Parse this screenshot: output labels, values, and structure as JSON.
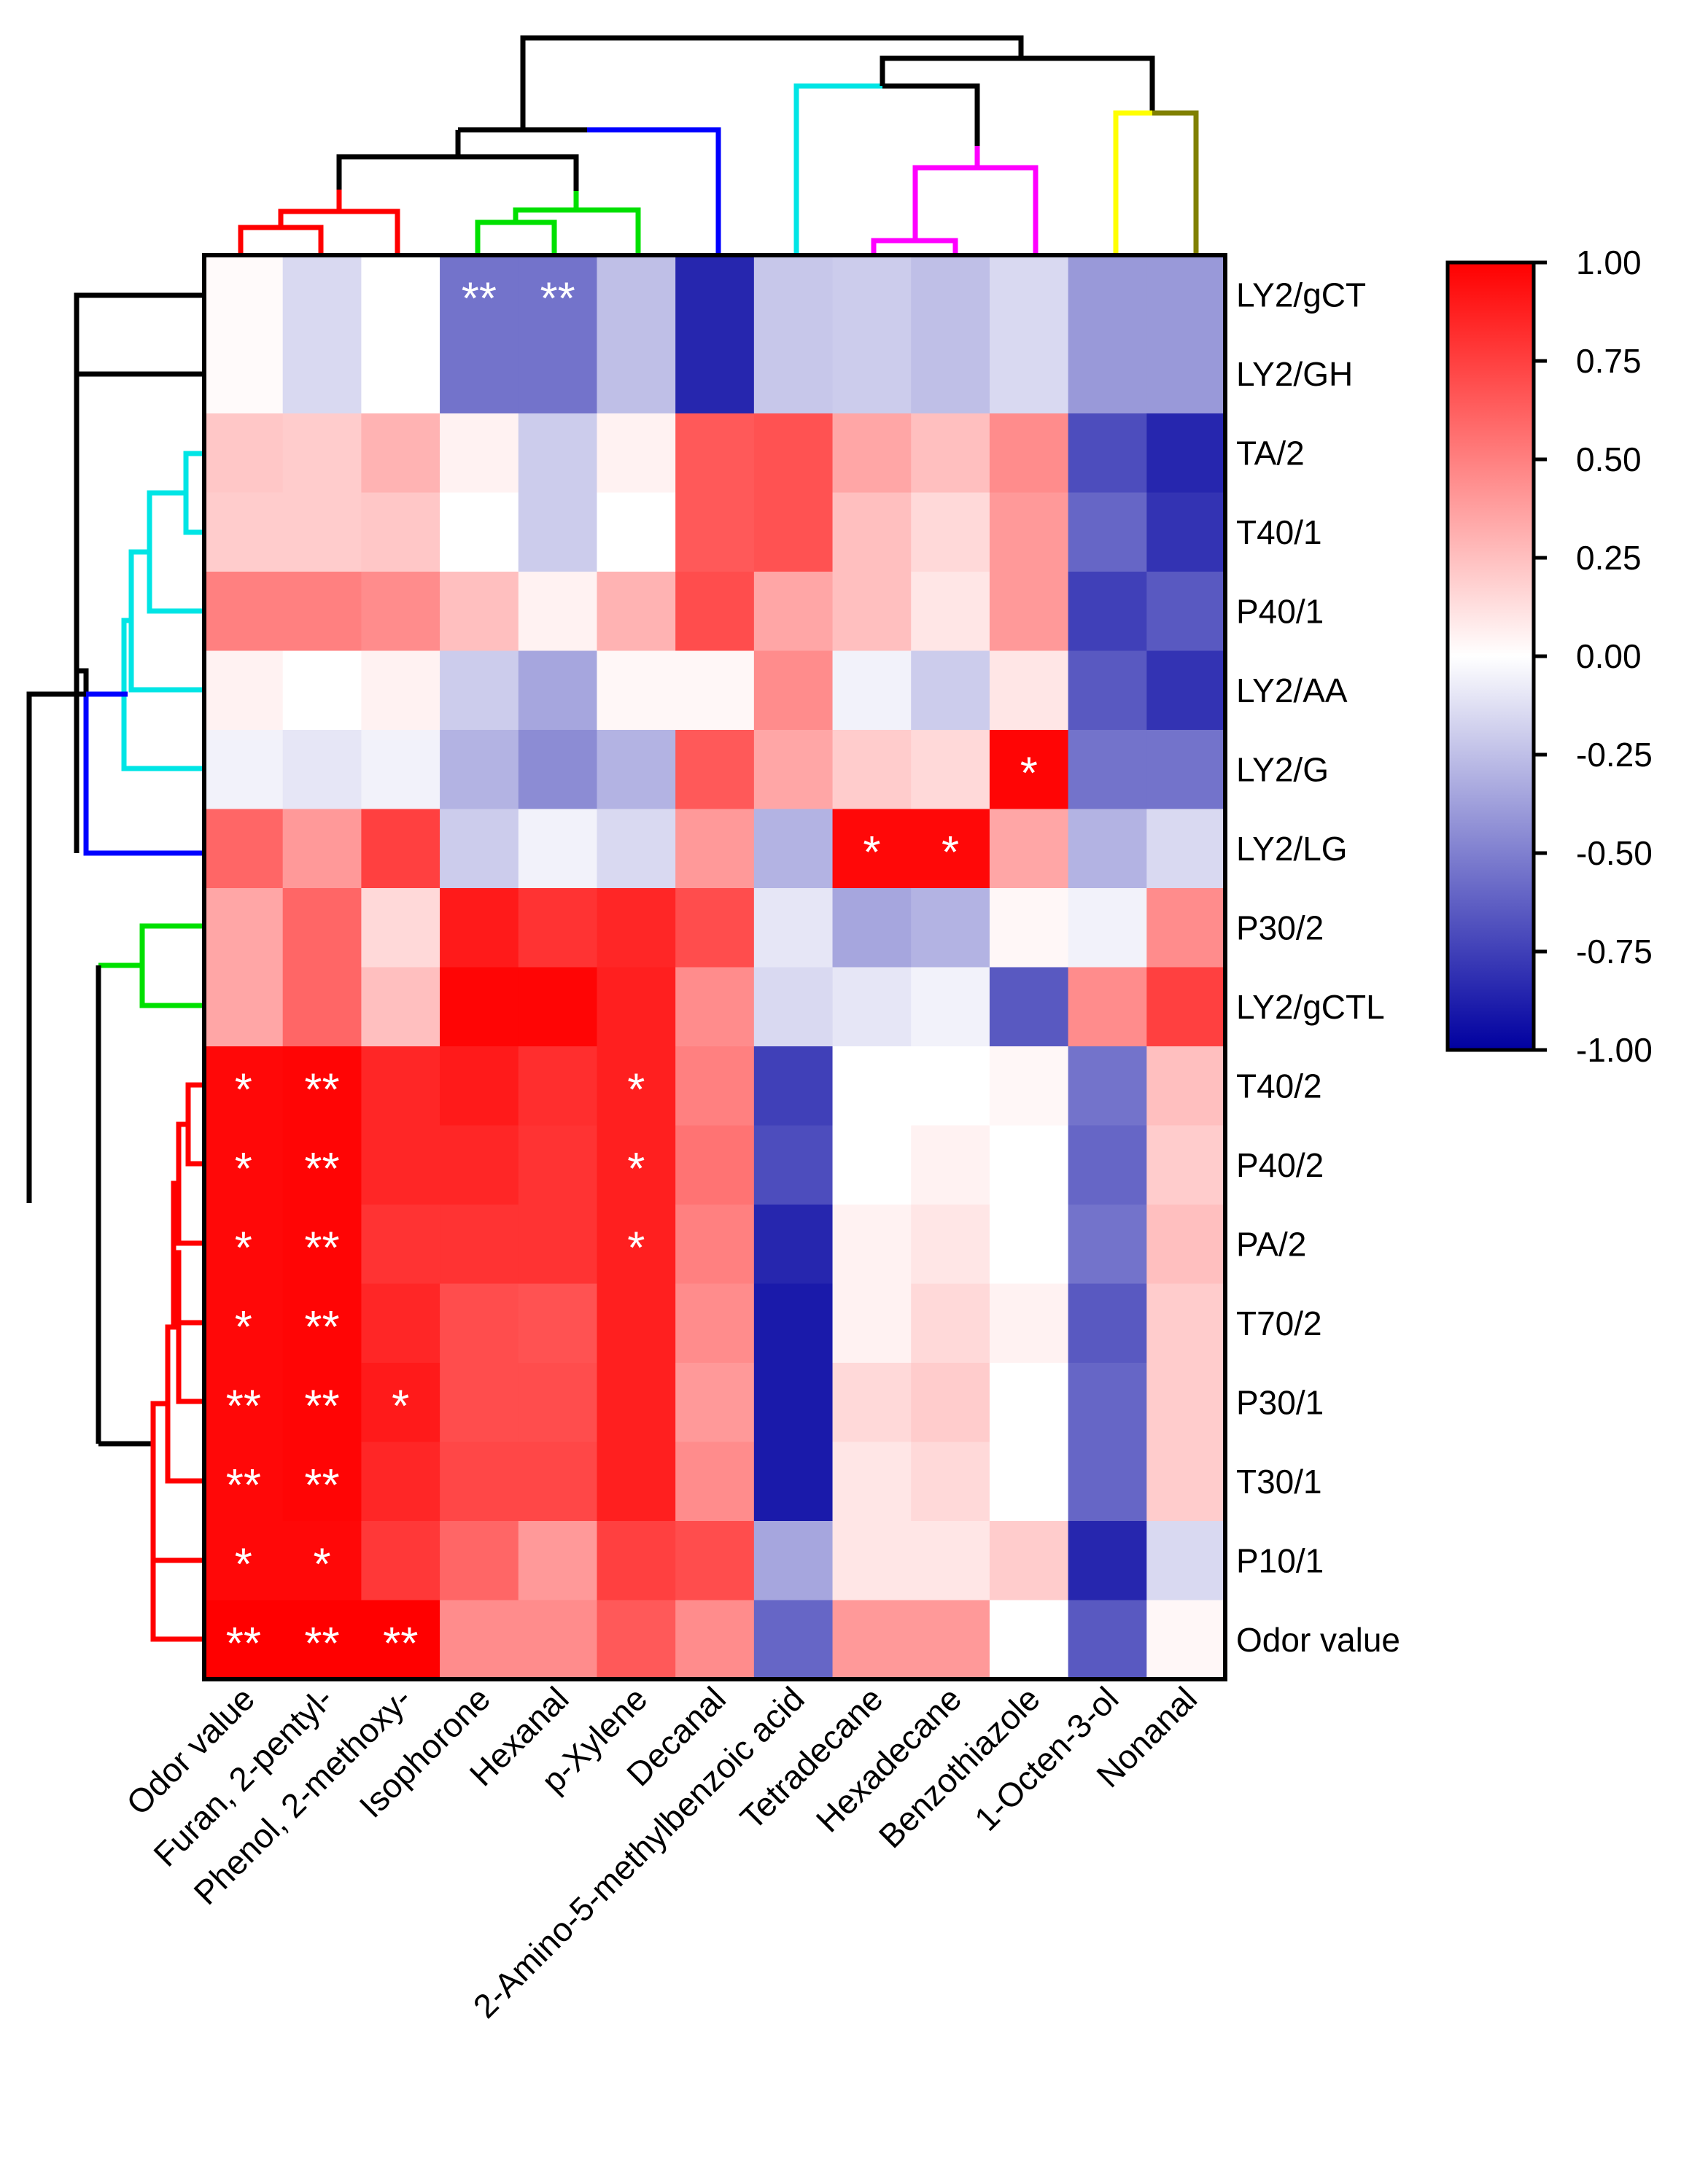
{
  "chart_data": {
    "type": "heatmap",
    "title": "",
    "rows": [
      "LY2/gCT",
      "LY2/GH",
      "TA/2",
      "T40/1",
      "P40/1",
      "LY2/AA",
      "LY2/G",
      "LY2/LG",
      "P30/2",
      "LY2/gCTL",
      "T40/2",
      "P40/2",
      "PA/2",
      "T70/2",
      "P30/1",
      "T30/1",
      "P10/1",
      "Odor value"
    ],
    "columns": [
      "Odor value",
      "Furan, 2-pentyl-",
      "Phenol, 2-methoxy-",
      "Isophorone",
      "Hexanal",
      "p-Xylene",
      "Decanal",
      "2-Amino-5-methylbenzoic acid",
      "Tetradecane",
      "Hexadecane",
      "Benzothiazole",
      "1-Octen-3-ol",
      "Nonanal"
    ],
    "values": [
      [
        0.02,
        -0.15,
        0.0,
        -0.55,
        -0.55,
        -0.25,
        -0.85,
        -0.22,
        -0.2,
        -0.25,
        -0.15,
        -0.4,
        -0.4
      ],
      [
        0.02,
        -0.15,
        0.0,
        -0.55,
        -0.55,
        -0.25,
        -0.85,
        -0.22,
        -0.2,
        -0.25,
        -0.15,
        -0.4,
        -0.4
      ],
      [
        0.22,
        0.2,
        0.3,
        0.05,
        -0.2,
        0.05,
        0.65,
        0.68,
        0.35,
        0.25,
        0.45,
        -0.7,
        -0.85
      ],
      [
        0.2,
        0.2,
        0.22,
        0.0,
        -0.2,
        0.0,
        0.65,
        0.68,
        0.25,
        0.15,
        0.4,
        -0.6,
        -0.8
      ],
      [
        0.5,
        0.5,
        0.45,
        0.25,
        0.05,
        0.3,
        0.7,
        0.35,
        0.25,
        0.1,
        0.4,
        -0.75,
        -0.65
      ],
      [
        0.05,
        0.0,
        0.05,
        -0.2,
        -0.35,
        0.03,
        0.03,
        0.45,
        -0.05,
        -0.2,
        0.1,
        -0.65,
        -0.8
      ],
      [
        -0.05,
        -0.1,
        -0.05,
        -0.3,
        -0.45,
        -0.3,
        0.65,
        0.35,
        0.2,
        0.15,
        0.98,
        -0.55,
        -0.55
      ],
      [
        0.6,
        0.4,
        0.75,
        -0.2,
        -0.05,
        -0.15,
        0.4,
        -0.3,
        0.97,
        0.97,
        0.35,
        -0.3,
        -0.15
      ],
      [
        0.35,
        0.6,
        0.15,
        0.9,
        0.8,
        0.85,
        0.7,
        -0.1,
        -0.35,
        -0.3,
        0.03,
        -0.05,
        0.45
      ],
      [
        0.35,
        0.6,
        0.25,
        0.98,
        0.98,
        0.88,
        0.45,
        -0.15,
        -0.1,
        -0.05,
        -0.65,
        0.45,
        0.75
      ],
      [
        0.97,
        0.98,
        0.85,
        0.9,
        0.82,
        0.88,
        0.5,
        -0.75,
        0.0,
        0.0,
        0.03,
        -0.55,
        0.25
      ],
      [
        0.97,
        0.98,
        0.85,
        0.85,
        0.8,
        0.88,
        0.55,
        -0.7,
        0.0,
        0.05,
        0.0,
        -0.6,
        0.2
      ],
      [
        0.97,
        0.98,
        0.8,
        0.8,
        0.8,
        0.88,
        0.5,
        -0.85,
        0.05,
        0.1,
        0.0,
        -0.55,
        0.25
      ],
      [
        0.97,
        0.98,
        0.85,
        0.7,
        0.68,
        0.88,
        0.45,
        -0.9,
        0.05,
        0.15,
        0.05,
        -0.65,
        0.2
      ],
      [
        0.97,
        0.98,
        0.9,
        0.7,
        0.7,
        0.88,
        0.4,
        -0.9,
        0.15,
        0.2,
        0.0,
        -0.6,
        0.2
      ],
      [
        0.97,
        0.98,
        0.85,
        0.72,
        0.72,
        0.88,
        0.45,
        -0.9,
        0.1,
        0.15,
        0.0,
        -0.6,
        0.2
      ],
      [
        0.97,
        0.97,
        0.78,
        0.6,
        0.4,
        0.75,
        0.7,
        -0.35,
        0.1,
        0.1,
        0.2,
        -0.85,
        -0.15
      ],
      [
        1.0,
        1.0,
        1.0,
        0.45,
        0.45,
        0.65,
        0.45,
        -0.6,
        0.4,
        0.4,
        0.0,
        -0.65,
        0.03
      ]
    ],
    "significance": [
      [
        "",
        "",
        "",
        "**",
        "**",
        "",
        "",
        "",
        "",
        "",
        "",
        "",
        ""
      ],
      [
        "",
        "",
        "",
        "",
        "",
        "",
        "",
        "",
        "",
        "",
        "",
        "",
        ""
      ],
      [
        "",
        "",
        "",
        "",
        "",
        "",
        "",
        "",
        "",
        "",
        "",
        "",
        ""
      ],
      [
        "",
        "",
        "",
        "",
        "",
        "",
        "",
        "",
        "",
        "",
        "",
        "",
        ""
      ],
      [
        "",
        "",
        "",
        "",
        "",
        "",
        "",
        "",
        "",
        "",
        "",
        "",
        ""
      ],
      [
        "",
        "",
        "",
        "",
        "",
        "",
        "",
        "",
        "",
        "",
        "",
        "",
        ""
      ],
      [
        "",
        "",
        "",
        "",
        "",
        "",
        "",
        "",
        "",
        "",
        "*",
        "",
        ""
      ],
      [
        "",
        "",
        "",
        "",
        "",
        "",
        "",
        "",
        "*",
        "*",
        "",
        "",
        ""
      ],
      [
        "",
        "",
        "",
        "",
        "",
        "",
        "",
        "",
        "",
        "",
        "",
        "",
        ""
      ],
      [
        "",
        "",
        "",
        "",
        "",
        "",
        "",
        "",
        "",
        "",
        "",
        "",
        ""
      ],
      [
        "*",
        "**",
        "",
        "",
        "",
        "*",
        "",
        "",
        "",
        "",
        "",
        "",
        ""
      ],
      [
        "*",
        "**",
        "",
        "",
        "",
        "*",
        "",
        "",
        "",
        "",
        "",
        "",
        ""
      ],
      [
        "*",
        "**",
        "",
        "",
        "",
        "*",
        "",
        "",
        "",
        "",
        "",
        "",
        ""
      ],
      [
        "*",
        "**",
        "",
        "",
        "",
        "",
        "",
        "",
        "",
        "",
        "",
        "",
        ""
      ],
      [
        "**",
        "**",
        "*",
        "",
        "",
        "",
        "",
        "",
        "",
        "",
        "",
        "",
        ""
      ],
      [
        "**",
        "**",
        "",
        "",
        "",
        "",
        "",
        "",
        "",
        "",
        "",
        "",
        ""
      ],
      [
        "*",
        "*",
        "",
        "",
        "",
        "",
        "",
        "",
        "",
        "",
        "",
        "",
        ""
      ],
      [
        "**",
        "**",
        "**",
        "",
        "",
        "",
        "",
        "",
        "",
        "",
        "",
        "",
        ""
      ]
    ],
    "colorscale": {
      "min": -1.0,
      "max": 1.0,
      "low_color": "#0000A0",
      "mid_color": "#FFFFFF",
      "high_color": "#FF0000",
      "ticks": [
        "1.00",
        "0.75",
        "0.50",
        "0.25",
        "0.00",
        "-0.25",
        "-0.50",
        "-0.75",
        "-1.00"
      ]
    },
    "row_dendrogram_colors": [
      "#00E5E5",
      "#0000FF",
      "#00E000",
      "#FF0000",
      "#000000"
    ],
    "col_dendrogram_colors": [
      "#FF0000",
      "#00E000",
      "#0000FF",
      "#00E5E5",
      "#FF00FF",
      "#FFFF00",
      "#808000",
      "#000000"
    ]
  }
}
